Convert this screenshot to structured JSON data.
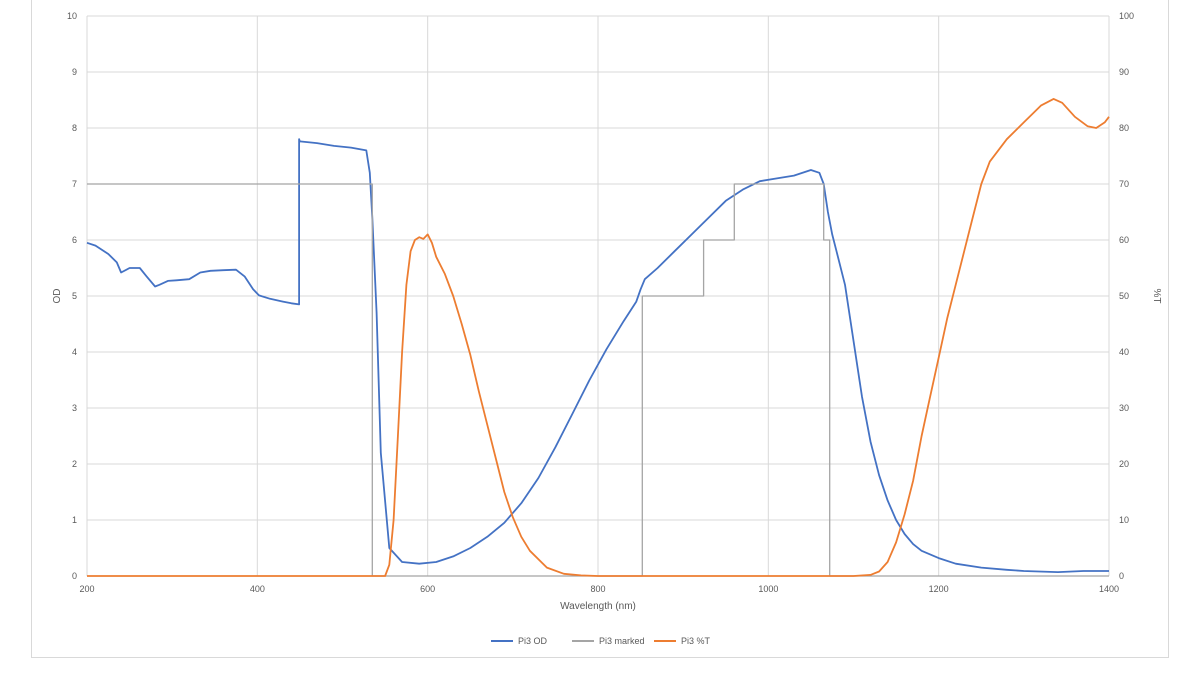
{
  "chart_data": {
    "type": "line",
    "title": "",
    "xlabel": "Wavelength (nm)",
    "ylabel": "OD",
    "y2label": "%T",
    "xlim": [
      200,
      1400
    ],
    "ylim": [
      0,
      10
    ],
    "y2lim": [
      0,
      100
    ],
    "x_ticks": [
      200,
      400,
      600,
      800,
      1000,
      1200,
      1400
    ],
    "y_ticks": [
      0,
      1,
      2,
      3,
      4,
      5,
      6,
      7,
      8,
      9,
      10
    ],
    "y2_ticks": [
      0,
      10,
      20,
      30,
      40,
      50,
      60,
      70,
      80,
      90,
      100
    ],
    "grid": true,
    "legend_position": "bottom",
    "series": [
      {
        "name": "Pi3 OD",
        "axis": "left",
        "color": "#4472c4",
        "x": [
          200,
          210,
          225,
          235,
          240,
          250,
          262,
          270,
          280,
          285,
          295,
          305,
          320,
          333,
          345,
          360,
          375,
          385,
          395,
          402,
          415,
          430,
          440,
          449,
          449,
          450,
          470,
          490,
          510,
          528,
          532,
          535,
          540,
          545,
          555,
          570,
          590,
          610,
          630,
          650,
          670,
          690,
          710,
          730,
          750,
          770,
          790,
          810,
          830,
          845,
          850,
          855,
          870,
          890,
          910,
          930,
          950,
          970,
          990,
          1010,
          1030,
          1050,
          1060,
          1065,
          1070,
          1075,
          1080,
          1090,
          1100,
          1110,
          1120,
          1130,
          1140,
          1150,
          1160,
          1170,
          1180,
          1200,
          1220,
          1250,
          1280,
          1300,
          1340,
          1370,
          1400
        ],
        "values": [
          5.95,
          5.9,
          5.75,
          5.6,
          5.42,
          5.5,
          5.5,
          5.35,
          5.17,
          5.2,
          5.27,
          5.28,
          5.3,
          5.42,
          5.45,
          5.46,
          5.47,
          5.35,
          5.12,
          5.01,
          4.95,
          4.9,
          4.87,
          4.85,
          7.8,
          7.76,
          7.73,
          7.68,
          7.65,
          7.6,
          7.2,
          6.4,
          4.7,
          2.2,
          0.5,
          0.25,
          0.22,
          0.25,
          0.35,
          0.5,
          0.7,
          0.95,
          1.3,
          1.75,
          2.3,
          2.9,
          3.5,
          4.05,
          4.55,
          4.9,
          5.12,
          5.3,
          5.5,
          5.8,
          6.1,
          6.4,
          6.7,
          6.9,
          7.05,
          7.1,
          7.15,
          7.25,
          7.2,
          7.0,
          6.5,
          6.1,
          5.8,
          5.2,
          4.2,
          3.2,
          2.4,
          1.8,
          1.35,
          1.0,
          0.75,
          0.57,
          0.45,
          0.32,
          0.22,
          0.15,
          0.11,
          0.09,
          0.07,
          0.09,
          0.09
        ]
      },
      {
        "name": "Pi3 marked",
        "axis": "left",
        "color": "#a5a5a5",
        "x": [
          200,
          535,
          535,
          852,
          852,
          924,
          924,
          960,
          960,
          1065,
          1065,
          1072,
          1072,
          1400
        ],
        "values": [
          7,
          7,
          0,
          0,
          5,
          5,
          6,
          6,
          7,
          7,
          6,
          6,
          0,
          0
        ]
      },
      {
        "name": "Pi3 %T",
        "axis": "right",
        "color": "#ed7d31",
        "x": [
          200,
          550,
          555,
          560,
          565,
          570,
          575,
          580,
          585,
          590,
          595,
          600,
          605,
          610,
          620,
          630,
          640,
          650,
          660,
          670,
          680,
          690,
          700,
          710,
          720,
          740,
          760,
          780,
          800,
          1100,
          1120,
          1130,
          1140,
          1150,
          1160,
          1170,
          1180,
          1190,
          1200,
          1210,
          1220,
          1230,
          1240,
          1250,
          1260,
          1280,
          1300,
          1320,
          1335,
          1345,
          1360,
          1375,
          1385,
          1395,
          1400
        ],
        "values": [
          0,
          0,
          2,
          10,
          25,
          40,
          52,
          58,
          60,
          60.5,
          60.2,
          61,
          59.5,
          57,
          54,
          50,
          45,
          39.5,
          33,
          27,
          21,
          15,
          10.5,
          7,
          4.5,
          1.5,
          0.4,
          0.1,
          0,
          0,
          0.2,
          0.8,
          2.5,
          6,
          11,
          17,
          25,
          32,
          39,
          46,
          52,
          58,
          64,
          70,
          74,
          78,
          81,
          84,
          85.2,
          84.5,
          82,
          80.3,
          80,
          81,
          82
        ]
      }
    ]
  }
}
